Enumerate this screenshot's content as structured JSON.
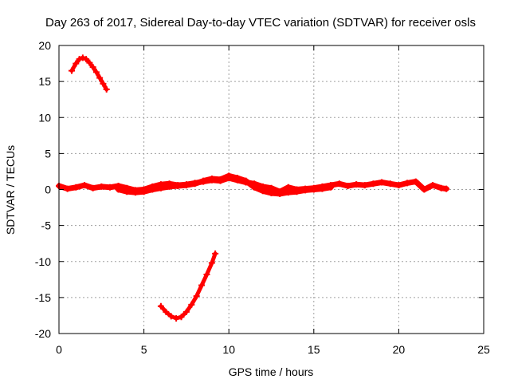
{
  "chart_data": {
    "type": "scatter",
    "title": "Day 263 of 2017, Sidereal Day-to-day VTEC variation (SDTVAR) for receiver osls",
    "xlabel": "GPS time / hours",
    "ylabel": "SDTVAR / TECUs",
    "xlim": [
      0,
      25
    ],
    "ylim": [
      -20,
      20
    ],
    "xticks": [
      0,
      5,
      10,
      15,
      20,
      25
    ],
    "yticks": [
      -20,
      -15,
      -10,
      -5,
      0,
      5,
      10,
      15,
      20
    ],
    "grid": true,
    "color": "#ff0000",
    "series": [
      {
        "name": "arc-high",
        "x": [
          0.75,
          1.0,
          1.2,
          1.4,
          1.6,
          1.8,
          2.0,
          2.2,
          2.4,
          2.6,
          2.8
        ],
        "y": [
          16.5,
          17.5,
          18.1,
          18.3,
          18.1,
          17.6,
          17.0,
          16.3,
          15.5,
          14.7,
          13.9
        ]
      },
      {
        "name": "arc-low",
        "x": [
          6.0,
          6.3,
          6.6,
          6.9,
          7.2,
          7.5,
          7.8,
          8.1,
          8.4,
          8.7,
          9.0,
          9.2
        ],
        "y": [
          -16.2,
          -17.0,
          -17.6,
          -17.9,
          -17.7,
          -17.0,
          -16.0,
          -14.8,
          -13.3,
          -11.8,
          -10.2,
          -8.9
        ]
      },
      {
        "name": "near-zero",
        "x": [
          0.0,
          0.5,
          1.0,
          1.5,
          2.0,
          2.5,
          3.0,
          3.5,
          4.0,
          4.5,
          5.0,
          5.5,
          6.0,
          6.5,
          7.0,
          7.5,
          8.0,
          8.5,
          9.0,
          9.5,
          10.0,
          10.5,
          11.0,
          11.5,
          12.0,
          12.5,
          13.0,
          13.5,
          14.0,
          14.5,
          15.0,
          15.5,
          16.0,
          16.5,
          17.0,
          17.5,
          18.0,
          18.5,
          19.0,
          19.5,
          20.0,
          20.5,
          21.0,
          21.5,
          22.0,
          22.5,
          22.8
        ],
        "y": [
          0.5,
          0.1,
          0.3,
          0.6,
          0.2,
          0.4,
          0.3,
          0.5,
          0.2,
          -0.1,
          0.0,
          0.4,
          0.7,
          0.8,
          0.6,
          0.7,
          0.9,
          1.1,
          1.3,
          1.2,
          1.6,
          1.3,
          1.0,
          0.8,
          0.4,
          0.2,
          -0.3,
          0.3,
          0.0,
          0.1,
          0.2,
          0.4,
          0.6,
          0.8,
          0.5,
          0.7,
          0.6,
          0.8,
          1.0,
          0.8,
          0.6,
          0.9,
          1.1,
          0.0,
          0.6,
          0.2,
          0.1
        ]
      },
      {
        "name": "near-zero-b",
        "x": [
          3.5,
          4.0,
          4.5,
          5.0,
          5.5,
          6.0,
          6.5,
          7.0,
          7.5,
          8.0,
          8.5,
          9.0,
          9.5,
          10.0,
          10.5,
          11.0,
          11.5,
          12.0,
          12.5,
          13.0,
          13.5,
          14.0,
          14.5,
          15.0,
          15.5,
          16.0
        ],
        "y": [
          0.0,
          -0.3,
          -0.4,
          -0.3,
          0.0,
          0.2,
          0.4,
          0.5,
          0.6,
          0.8,
          1.2,
          1.5,
          1.4,
          1.9,
          1.6,
          1.2,
          0.3,
          -0.2,
          -0.5,
          -0.6,
          -0.4,
          -0.3,
          -0.1,
          0.0,
          0.1,
          0.3
        ]
      }
    ]
  }
}
